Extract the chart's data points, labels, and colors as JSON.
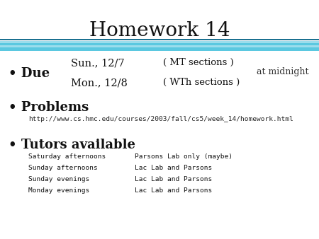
{
  "title": "Homework 14",
  "title_fontsize": 20,
  "bg_color": "#ffffff",
  "bar_color_teal": "#5bc8e0",
  "bar_color_dark": "#1a7090",
  "bullet_due": "• Due",
  "due_line1_date": "Sun., 12/7",
  "due_line1_section": "( MT sections )",
  "due_at_midnight": "at midnight",
  "due_line2_date": "Mon., 12/8",
  "due_line2_section": "( WTh sections )",
  "bullet_problems": "• Problems",
  "problems_url": "http://www.cs.hmc.edu/courses/2003/fall/cs5/week_14/homework.html",
  "bullet_tutors": "• Tutors available",
  "tutors": [
    [
      "Saturday afternoons",
      "Parsons Lab only (maybe)"
    ],
    [
      "Sunday afternoons",
      "Lac Lab and Parsons"
    ],
    [
      "Sunday evenings",
      "Lac Lab and Parsons"
    ],
    [
      "Monday evenings",
      "Lac Lab and Parsons"
    ]
  ]
}
